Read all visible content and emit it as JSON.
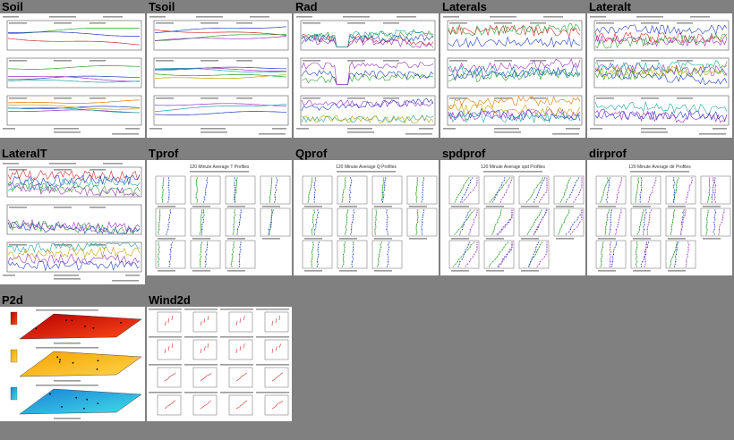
{
  "panels": [
    {
      "label": "Soil",
      "style": "ts3"
    },
    {
      "label": "Tsoil",
      "style": "ts3"
    },
    {
      "label": "Rad",
      "style": "ts3"
    },
    {
      "label": "Laterals",
      "style": "ts3"
    },
    {
      "label": "Lateralt",
      "style": "ts3"
    },
    {
      "label": "LateralT",
      "style": "ts3"
    },
    {
      "label": "Tprof",
      "style": "prof",
      "heading": "120 Minute Average T Profiles"
    },
    {
      "label": "Qprof",
      "style": "prof",
      "heading": "120 Minute Average Q Profiles"
    },
    {
      "label": "spdprof",
      "style": "prof",
      "heading": "120 Minute Average spd Profiles"
    },
    {
      "label": "dirprof",
      "style": "prof",
      "heading": "120 Minute Average dir Profiles"
    },
    {
      "label": "P2d",
      "style": "p2d"
    },
    {
      "label": "Wind2d",
      "style": "wind"
    }
  ],
  "colors": {
    "background": "#808080",
    "series": [
      "#d62728",
      "#2ca02c",
      "#1f3fbf",
      "#9a2fbf",
      "#1fa3a3",
      "#c0a000",
      "#e07a00"
    ]
  }
}
